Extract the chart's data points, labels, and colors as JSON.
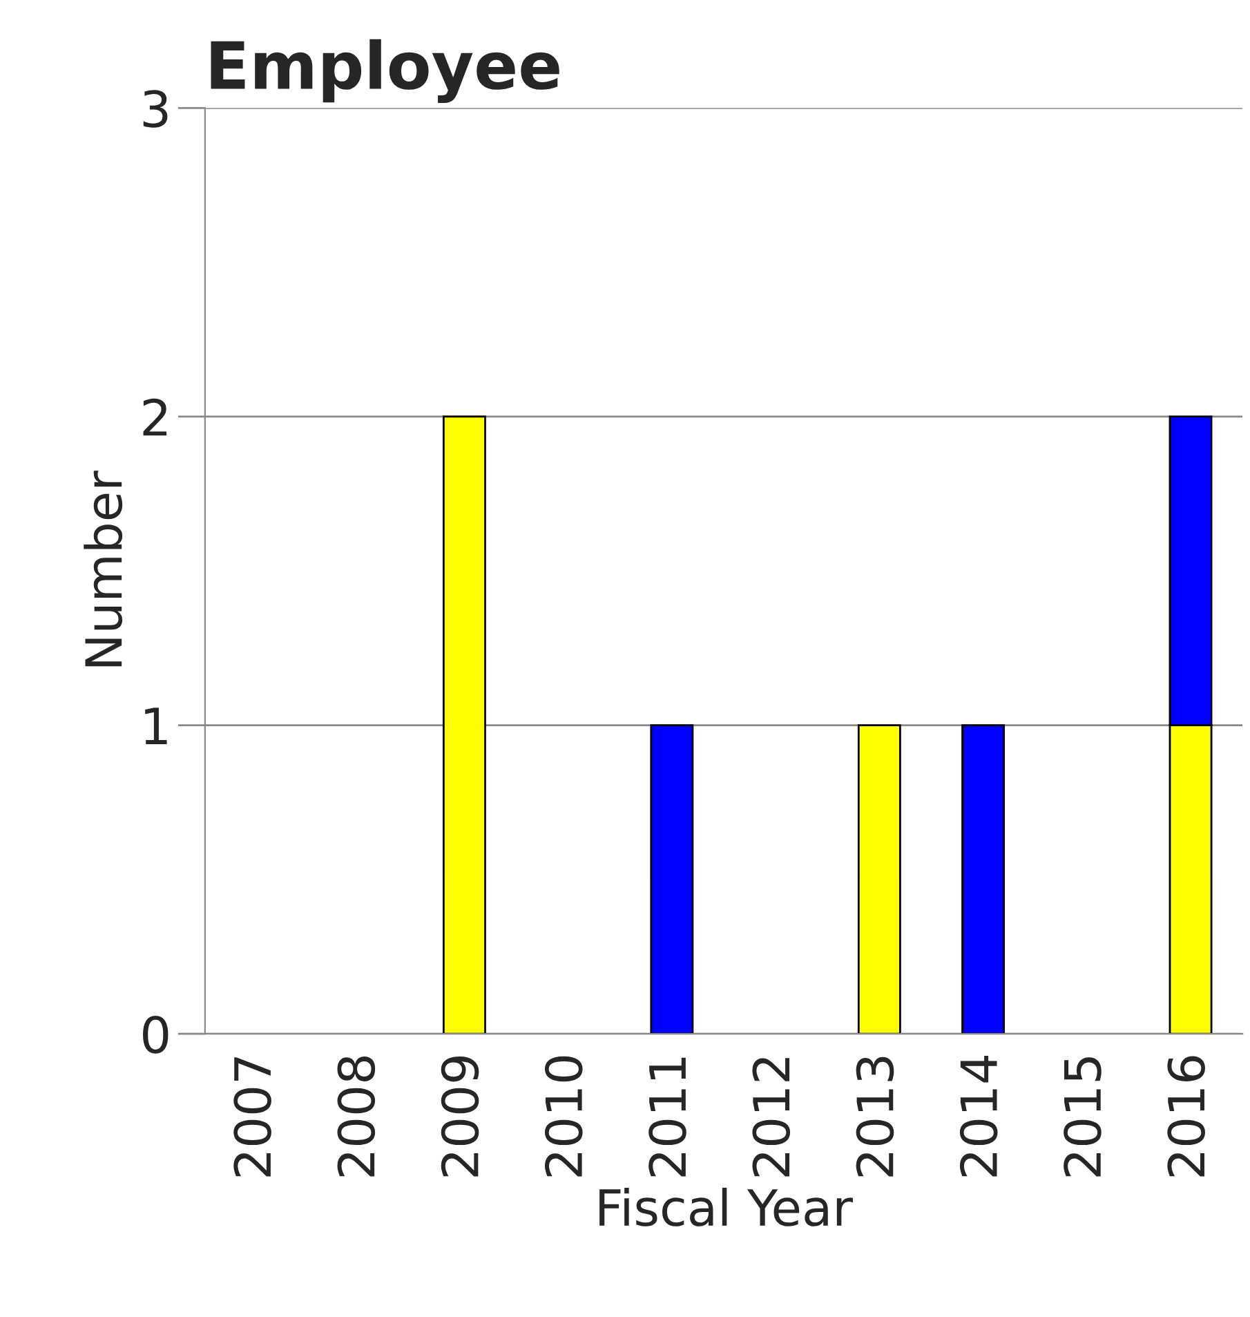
{
  "chart_data": {
    "type": "bar",
    "title": "Employee",
    "xlabel": "Fiscal Year",
    "ylabel": "Number",
    "categories": [
      "2007",
      "2008",
      "2009",
      "2010",
      "2011",
      "2012",
      "2013",
      "2014",
      "2015",
      "2016"
    ],
    "stacked": true,
    "series": [
      {
        "color": "#ffff00",
        "values": [
          null,
          null,
          2,
          null,
          null,
          null,
          1,
          null,
          null,
          1
        ]
      },
      {
        "color": "#0000ff",
        "values": [
          null,
          null,
          null,
          null,
          1,
          null,
          null,
          1,
          null,
          1
        ]
      }
    ],
    "ylim": [
      0,
      3
    ],
    "yticks": [
      0,
      1,
      2,
      3
    ],
    "grid": "y"
  }
}
